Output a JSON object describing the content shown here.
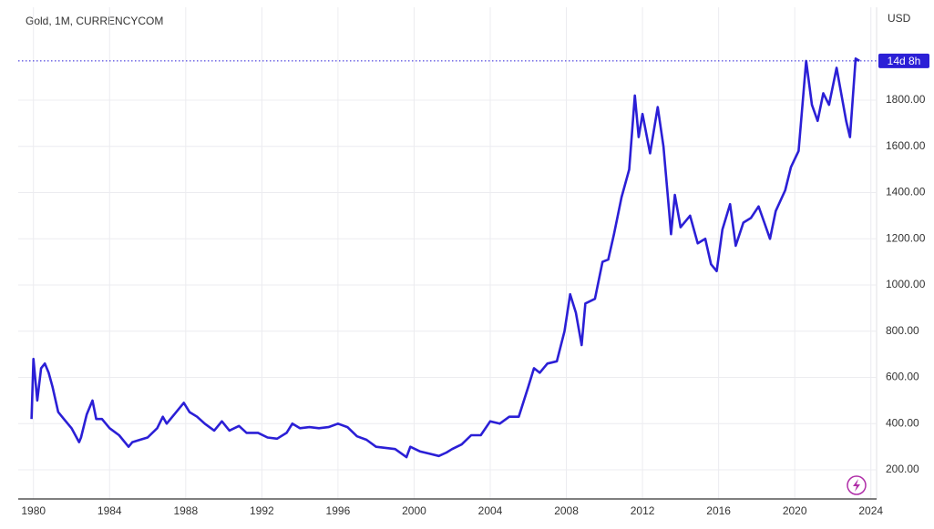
{
  "chart_data": {
    "type": "line",
    "title": "Gold, 1M, CURRENCYCOM",
    "y_axis_label": "USD",
    "countdown_label": "14d 8h",
    "color": "#2b1fd6",
    "grid": true,
    "y_axis_side": "right",
    "xlim": [
      1979.2,
      2024.3
    ],
    "ylim": [
      74,
      2202
    ],
    "xticks": [
      1980,
      1984,
      1988,
      1992,
      1996,
      2000,
      2004,
      2008,
      2012,
      2016,
      2020,
      2024
    ],
    "yticks": [
      {
        "value": 200,
        "label": "200.00"
      },
      {
        "value": 400,
        "label": "400.00"
      },
      {
        "value": 600,
        "label": "600.00"
      },
      {
        "value": 800,
        "label": "800.00"
      },
      {
        "value": 1000,
        "label": "1000.00"
      },
      {
        "value": 1200,
        "label": "1200.00"
      },
      {
        "value": 1400,
        "label": "1400.00"
      },
      {
        "value": 1600,
        "label": "1600.00"
      },
      {
        "value": 1800,
        "label": "1800.00"
      }
    ],
    "series": [
      {
        "name": "Gold",
        "color": "#2b1fd6",
        "x": [
          1979.9,
          1980.0,
          1980.2,
          1980.4,
          1980.6,
          1980.8,
          1981.0,
          1981.3,
          1981.6,
          1982.0,
          1982.4,
          1982.5,
          1982.8,
          1983.1,
          1983.3,
          1983.6,
          1984.0,
          1984.5,
          1985.0,
          1985.2,
          1985.6,
          1986.0,
          1986.5,
          1986.8,
          1987.0,
          1987.5,
          1987.9,
          1988.2,
          1988.6,
          1989.0,
          1989.5,
          1989.9,
          1990.3,
          1990.8,
          1991.2,
          1991.8,
          1992.3,
          1992.8,
          1993.3,
          1993.6,
          1994.0,
          1994.5,
          1995.0,
          1995.5,
          1996.0,
          1996.5,
          1997.0,
          1997.5,
          1998.0,
          1998.5,
          1999.0,
          1999.6,
          1999.8,
          2000.3,
          2000.8,
          2001.3,
          2001.7,
          2002.0,
          2002.5,
          2003.0,
          2003.5,
          2004.0,
          2004.5,
          2005.0,
          2005.5,
          2006.0,
          2006.3,
          2006.6,
          2007.0,
          2007.5,
          2007.9,
          2008.2,
          2008.5,
          2008.8,
          2009.0,
          2009.5,
          2009.9,
          2010.2,
          2010.5,
          2010.9,
          2011.3,
          2011.6,
          2011.8,
          2012.0,
          2012.4,
          2012.8,
          2013.1,
          2013.4,
          2013.5,
          2013.7,
          2014.0,
          2014.5,
          2014.9,
          2015.3,
          2015.6,
          2015.9,
          2016.2,
          2016.6,
          2016.9,
          2017.3,
          2017.7,
          2018.1,
          2018.4,
          2018.7,
          2019.0,
          2019.5,
          2019.8,
          2020.2,
          2020.6,
          2020.9,
          2021.2,
          2021.5,
          2021.8,
          2022.2,
          2022.7,
          2022.9,
          2023.2,
          2023.4
        ],
        "values": [
          420,
          680,
          500,
          640,
          660,
          620,
          560,
          450,
          420,
          380,
          320,
          340,
          440,
          500,
          420,
          420,
          380,
          350,
          300,
          320,
          330,
          340,
          380,
          430,
          400,
          450,
          490,
          450,
          430,
          400,
          370,
          410,
          370,
          390,
          360,
          360,
          340,
          335,
          360,
          400,
          380,
          385,
          380,
          385,
          400,
          385,
          345,
          330,
          300,
          295,
          290,
          255,
          300,
          280,
          270,
          260,
          275,
          290,
          310,
          350,
          350,
          410,
          400,
          430,
          430,
          560,
          640,
          620,
          660,
          670,
          800,
          960,
          880,
          740,
          920,
          940,
          1100,
          1110,
          1220,
          1380,
          1500,
          1820,
          1640,
          1740,
          1570,
          1770,
          1600,
          1320,
          1220,
          1390,
          1250,
          1300,
          1180,
          1200,
          1090,
          1060,
          1240,
          1350,
          1170,
          1270,
          1290,
          1340,
          1270,
          1200,
          1320,
          1410,
          1510,
          1580,
          1970,
          1780,
          1710,
          1830,
          1780,
          1940,
          1710,
          1640,
          1980,
          1970
        ]
      }
    ]
  }
}
